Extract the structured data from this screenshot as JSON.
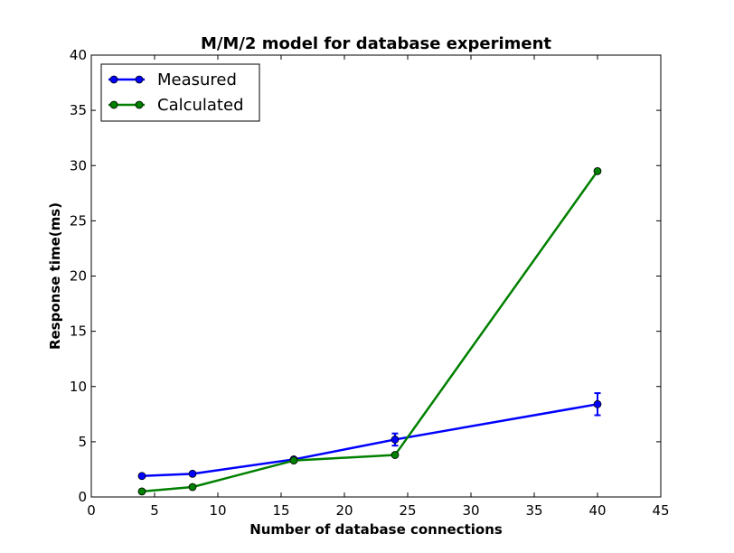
{
  "chart_data": {
    "type": "line",
    "title": "M/M/2 model for database experiment",
    "xlabel": "Number of database connections",
    "ylabel": "Response time(ms)",
    "xlim": [
      0,
      45
    ],
    "ylim": [
      0,
      40
    ],
    "xticks": [
      0,
      5,
      10,
      15,
      20,
      25,
      30,
      35,
      40,
      45
    ],
    "yticks": [
      0,
      5,
      10,
      15,
      20,
      25,
      30,
      35,
      40
    ],
    "grid": false,
    "legend_position": "top-left",
    "series": [
      {
        "name": "Measured",
        "color": "#0000ff",
        "marker": "circle",
        "x": [
          4,
          8,
          16,
          24,
          40
        ],
        "y": [
          1.9,
          2.1,
          3.4,
          5.2,
          8.4
        ],
        "yerr": [
          0.1,
          0.1,
          0.15,
          0.55,
          1.0
        ]
      },
      {
        "name": "Calculated",
        "color": "#008000",
        "marker": "circle",
        "x": [
          4,
          8,
          16,
          24,
          40
        ],
        "y": [
          0.5,
          0.9,
          3.3,
          3.8,
          29.5
        ]
      }
    ]
  }
}
